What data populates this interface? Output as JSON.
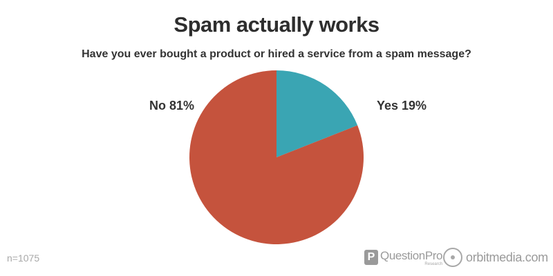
{
  "chart_data": {
    "type": "pie",
    "title": "Spam actually works",
    "subtitle": "Have you ever bought a product or hired a service from a spam message?",
    "slices": [
      {
        "label": "Yes 19%",
        "category": "Yes",
        "value": 19,
        "color": "#3aa5b3"
      },
      {
        "label": "No 81%",
        "category": "No",
        "value": 81,
        "color": "#c5533d"
      }
    ],
    "note": "n=1075"
  },
  "branding": {
    "questionpro_letter": "P",
    "questionpro_name": "QuestionPro",
    "questionpro_sub": "Research",
    "questionpro_icon": "questionpro-logo-icon",
    "orbitmedia_name": "orbitmedia.com",
    "orbitmedia_icon": "orbitmedia-logo-icon"
  }
}
